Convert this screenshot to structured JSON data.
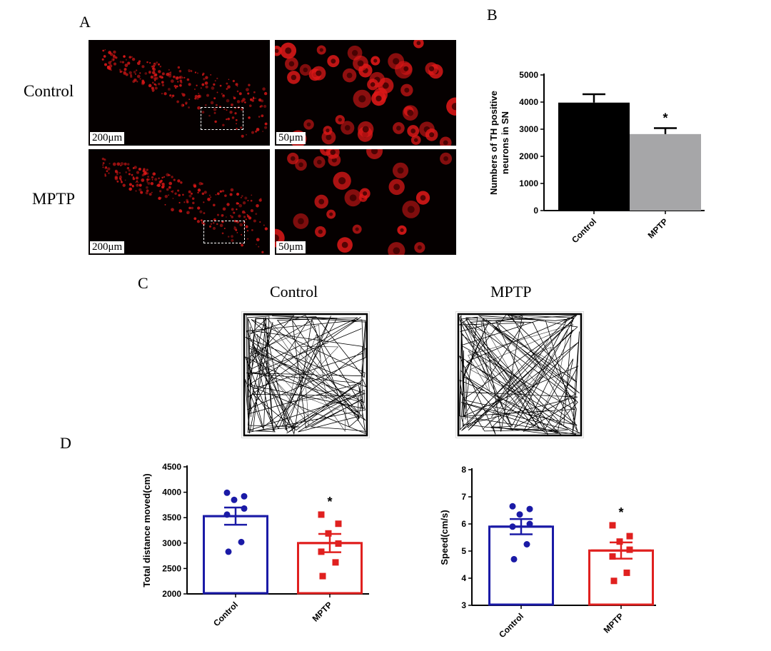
{
  "panels": {
    "a": "A",
    "b": "B",
    "c": "C",
    "d": "D"
  },
  "panel_a": {
    "row_labels": [
      "Control",
      "MPTP"
    ],
    "scale_low": "200μm",
    "scale_high": "50μm"
  },
  "panel_c": {
    "titles": [
      "Control",
      "MPTP"
    ]
  },
  "colors": {
    "control_bar_b": "#000000",
    "mptp_bar_b": "#a6a6a8",
    "control_d": "#1a1aa6",
    "mptp_d": "#e0201f",
    "fluor": "#e01818"
  },
  "chart_data": [
    {
      "id": "B",
      "type": "bar",
      "categories": [
        "Control",
        "MPTP"
      ],
      "values": [
        3980,
        2820
      ],
      "errors": [
        310,
        220
      ],
      "ylabel": "Numbers of TH positive neurons in SN",
      "ylim": [
        0,
        5000
      ],
      "yticks": [
        "0",
        "1000",
        "2000",
        "3000",
        "4000",
        "5000"
      ],
      "significance": [
        "",
        "*"
      ]
    },
    {
      "id": "D-left",
      "type": "bar",
      "categories": [
        "Control",
        "MPTP"
      ],
      "values": [
        3530,
        3000
      ],
      "errors": [
        170,
        180
      ],
      "points": [
        [
          3990,
          3920,
          3850,
          3680,
          3560,
          3020,
          2830
        ],
        [
          3560,
          3380,
          3190,
          2990,
          2830,
          2620,
          2350
        ]
      ],
      "ylabel": "Total distance moved(cm)",
      "ylim": [
        2000,
        4500
      ],
      "yticks": [
        "2000",
        "2500",
        "3000",
        "3500",
        "4000",
        "4500"
      ],
      "significance": [
        "",
        "*"
      ]
    },
    {
      "id": "D-right",
      "type": "bar",
      "categories": [
        "Control",
        "MPTP"
      ],
      "values": [
        5.9,
        5.02
      ],
      "errors": [
        0.28,
        0.3
      ],
      "points": [
        [
          6.65,
          6.55,
          6.35,
          6.0,
          5.9,
          5.25,
          4.7
        ],
        [
          5.95,
          5.55,
          5.35,
          5.05,
          4.8,
          4.2,
          3.9
        ]
      ],
      "ylabel": "Speed(cm/s)",
      "ylim": [
        3,
        8
      ],
      "yticks": [
        "3",
        "4",
        "5",
        "6",
        "7",
        "8"
      ],
      "significance": [
        "",
        "*"
      ]
    }
  ]
}
